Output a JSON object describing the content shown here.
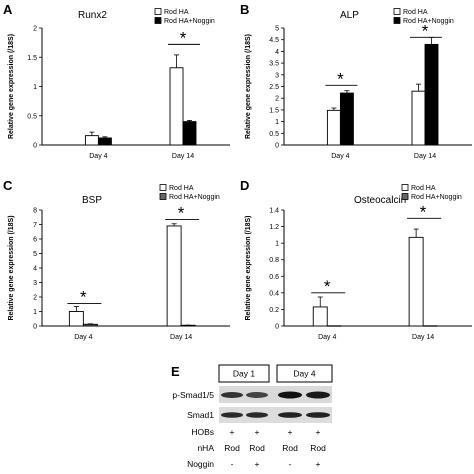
{
  "panels": {
    "a": {
      "label": "A"
    },
    "b": {
      "label": "B"
    },
    "c": {
      "label": "C"
    },
    "d": {
      "label": "D"
    },
    "e": {
      "label": "E"
    }
  },
  "chart_data": [
    {
      "id": "A",
      "type": "bar",
      "title": "Runx2",
      "ylabel": "Relative gene expression (/18S)",
      "categories": [
        "Day 4",
        "Day 14"
      ],
      "ylim": [
        0,
        2
      ],
      "yticks": [
        "0",
        "0.5",
        "1",
        "1.5",
        "2"
      ],
      "series": [
        {
          "name": "Rod HA",
          "values": [
            0.16,
            1.32
          ],
          "errors": [
            0.06,
            0.22
          ],
          "color": "#ffffff"
        },
        {
          "name": "Rod HA+Noggin",
          "values": [
            0.12,
            0.4
          ],
          "errors": [
            0.02,
            0.02
          ],
          "color": "#000000"
        }
      ],
      "annotations": [
        "*"
      ]
    },
    {
      "id": "B",
      "type": "bar",
      "title": "ALP",
      "ylabel": "Relative gene expression (/18S)",
      "categories": [
        "Day 4",
        "Day 14"
      ],
      "ylim": [
        0,
        5
      ],
      "yticks": [
        "0",
        "0.5",
        "1",
        "1.5",
        "2",
        "2.5",
        "3",
        "3.5",
        "4",
        "4.5",
        "5"
      ],
      "series": [
        {
          "name": "Rod HA",
          "values": [
            1.48,
            2.3
          ],
          "errors": [
            0.1,
            0.3
          ],
          "color": "#ffffff"
        },
        {
          "name": "Rod HA+Noggin",
          "values": [
            2.22,
            4.3
          ],
          "errors": [
            0.1,
            0.3
          ],
          "color": "#000000"
        }
      ],
      "annotations": [
        "*",
        "*"
      ]
    },
    {
      "id": "C",
      "type": "bar",
      "title": "BSP",
      "ylabel": "Relative gene expression (/18S)",
      "categories": [
        "Day 4",
        "Day 14"
      ],
      "ylim": [
        0,
        8
      ],
      "yticks": [
        "0",
        "1",
        "2",
        "3",
        "4",
        "5",
        "6",
        "7",
        "8"
      ],
      "series": [
        {
          "name": "Rod HA",
          "values": [
            1.0,
            6.9
          ],
          "errors": [
            0.35,
            0.15
          ],
          "color": "#ffffff"
        },
        {
          "name": "Rod HA+Noggin",
          "values": [
            0.12,
            0.05
          ],
          "errors": [
            0.03,
            0.01
          ],
          "color": "#666666"
        }
      ],
      "annotations": [
        "*",
        "*"
      ]
    },
    {
      "id": "D",
      "type": "bar",
      "title": "Osteocalcin",
      "ylabel": "Relative gene expression (/18S)",
      "categories": [
        "Day 4",
        "Day 14"
      ],
      "ylim": [
        0,
        1.4
      ],
      "yticks": [
        "0",
        "0.2",
        "0.4",
        "0.6",
        "0.8",
        "1",
        "1.2",
        "1.4"
      ],
      "series": [
        {
          "name": "Rod HA",
          "values": [
            0.23,
            1.07
          ],
          "errors": [
            0.12,
            0.1
          ],
          "color": "#ffffff"
        },
        {
          "name": "Rod HA+Noggin",
          "values": [
            0.0,
            0.0
          ],
          "errors": [
            0,
            0
          ],
          "color": "#666666"
        }
      ],
      "annotations": [
        "*",
        "*"
      ]
    }
  ],
  "western": {
    "day1": "Day 1",
    "day4": "Day 4",
    "rows": [
      {
        "label": "p-Smad1/5"
      },
      {
        "label": "Smad1"
      }
    ],
    "hobs": {
      "label": "HOBs",
      "values": [
        "+",
        "+",
        "+",
        "+"
      ]
    },
    "nha": {
      "label": "nHA",
      "values": [
        "Rod",
        "Rod",
        "Rod",
        "Rod"
      ]
    },
    "noggin": {
      "label": "Noggin",
      "values": [
        "-",
        "+",
        "-",
        "+"
      ]
    }
  }
}
